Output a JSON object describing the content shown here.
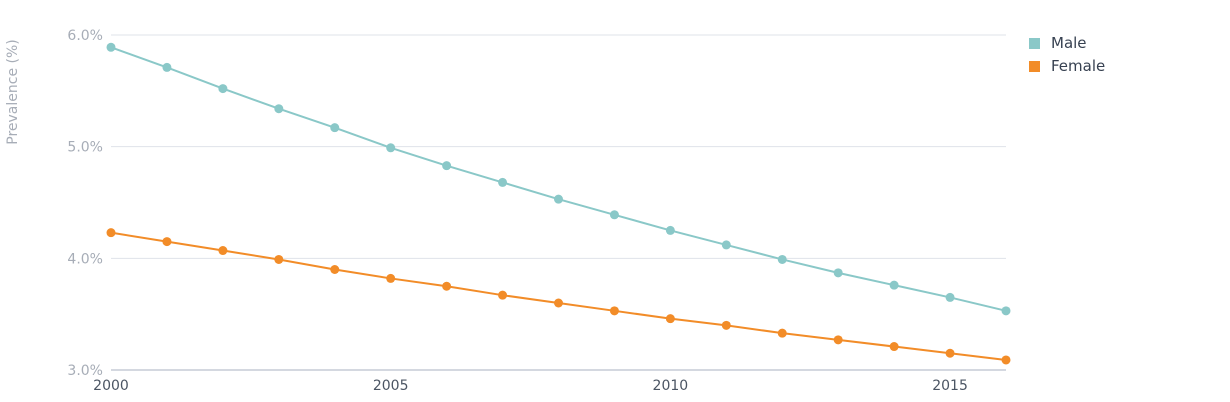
{
  "chart_data": {
    "type": "line",
    "title": "",
    "xlabel": "",
    "ylabel": "Prevalence (%)",
    "x": [
      2000,
      2001,
      2002,
      2003,
      2004,
      2005,
      2006,
      2007,
      2008,
      2009,
      2010,
      2011,
      2012,
      2013,
      2014,
      2015,
      2016
    ],
    "xlim": [
      2000,
      2016
    ],
    "ylim": [
      3.0,
      6.0
    ],
    "xticks": [
      "2000",
      "2005",
      "2010",
      "2015"
    ],
    "yticks": [
      "3.0%",
      "4.0%",
      "5.0%",
      "6.0%"
    ],
    "grid": true,
    "legend_position": "top-right",
    "series": [
      {
        "name": "Male",
        "color": "#8ac8c8",
        "values": [
          5.89,
          5.71,
          5.52,
          5.34,
          5.17,
          4.99,
          4.83,
          4.68,
          4.53,
          4.39,
          4.25,
          4.12,
          3.99,
          3.87,
          3.76,
          3.65,
          3.53
        ]
      },
      {
        "name": "Female",
        "color": "#f28c28",
        "values": [
          4.23,
          4.15,
          4.07,
          3.99,
          3.9,
          3.82,
          3.75,
          3.67,
          3.6,
          3.53,
          3.46,
          3.4,
          3.33,
          3.27,
          3.21,
          3.15,
          3.09
        ]
      }
    ]
  }
}
